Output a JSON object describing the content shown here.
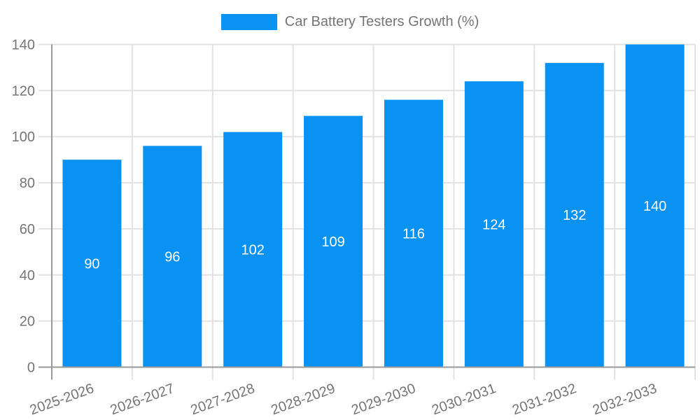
{
  "legend": {
    "label": "Car Battery Testers Growth (%)"
  },
  "colors": {
    "bar": "#0992f2",
    "grid": "#e2e2e2",
    "axis_line": "#9a9a9a",
    "tick_text": "#757575",
    "value_label": "#ffffff",
    "background": "#ffffff"
  },
  "chart_data": {
    "type": "bar",
    "title": "Car Battery Testers Growth (%)",
    "series_name": "Car Battery Testers Growth (%)",
    "categories": [
      "2025-2026",
      "2026-2027",
      "2027-2028",
      "2028-2029",
      "2029-2030",
      "2030-2031",
      "2031-2032",
      "2032-2033"
    ],
    "values": [
      90,
      96,
      102,
      109,
      116,
      124,
      132,
      140
    ],
    "xlabel": "",
    "ylabel": "",
    "ylim": [
      0,
      140
    ],
    "yticks": [
      0,
      20,
      40,
      60,
      80,
      100,
      120,
      140
    ],
    "grid": true,
    "legend_position": "top",
    "value_labels": "inside-center",
    "x_tick_rotation_deg": -20
  }
}
